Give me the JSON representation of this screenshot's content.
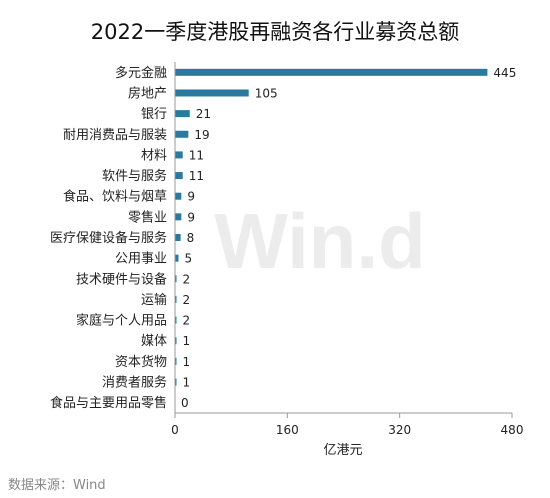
{
  "chart_data": {
    "type": "bar",
    "orientation": "horizontal",
    "title": "2022一季度港股再融资各行业募资总额",
    "xlabel": "亿港元",
    "ylabel": "",
    "xlim": [
      0,
      480
    ],
    "xticks": [
      0,
      160,
      320,
      480
    ],
    "categories": [
      "多元金融",
      "房地产",
      "银行",
      "耐用消费品与服装",
      "材料",
      "软件与服务",
      "食品、饮料与烟草",
      "零售业",
      "医疗保健设备与服务",
      "公用事业",
      "技术硬件与设备",
      "运输",
      "家庭与个人用品",
      "媒体",
      "资本货物",
      "消费者服务",
      "食品与主要用品零售"
    ],
    "values": [
      445,
      105,
      21,
      19,
      11,
      11,
      9,
      9,
      8,
      5,
      2,
      2,
      2,
      1,
      1,
      1,
      0
    ],
    "bar_color": "#2a7aa0",
    "grid": false,
    "watermark": "Win.d"
  },
  "source": "数据来源：Wind"
}
